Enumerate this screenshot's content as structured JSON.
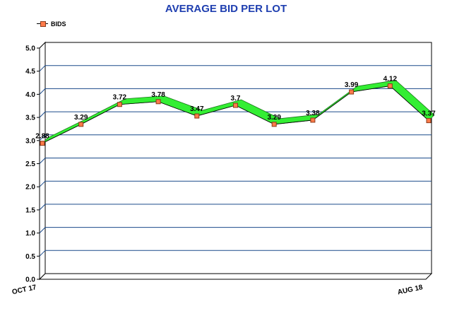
{
  "chart_data": {
    "type": "line",
    "title": "AVERAGE BID PER LOT",
    "legend": {
      "position": "top-left",
      "entries": [
        "BIDS"
      ]
    },
    "categories": [
      "OCT 17",
      "",
      "",
      "",
      "",
      "",
      "",
      "",
      "",
      "",
      "AUG 18"
    ],
    "series": [
      {
        "name": "BIDS",
        "values": [
          2.88,
          3.29,
          3.72,
          3.78,
          3.47,
          3.7,
          3.29,
          3.38,
          3.99,
          4.12,
          3.37
        ]
      }
    ],
    "ylim": [
      0,
      5
    ],
    "yticks": [
      "0.0",
      "0.5",
      "1.0",
      "1.5",
      "2.0",
      "2.5",
      "3.0",
      "3.5",
      "4.0",
      "4.5",
      "5.0"
    ],
    "grid": true,
    "xlabel": "",
    "ylabel": "",
    "colors": {
      "title": "#1f3fb0",
      "ribbon": "#33ee33",
      "marker": "#ff7b4a",
      "gridline": "#1a4a8a"
    }
  }
}
